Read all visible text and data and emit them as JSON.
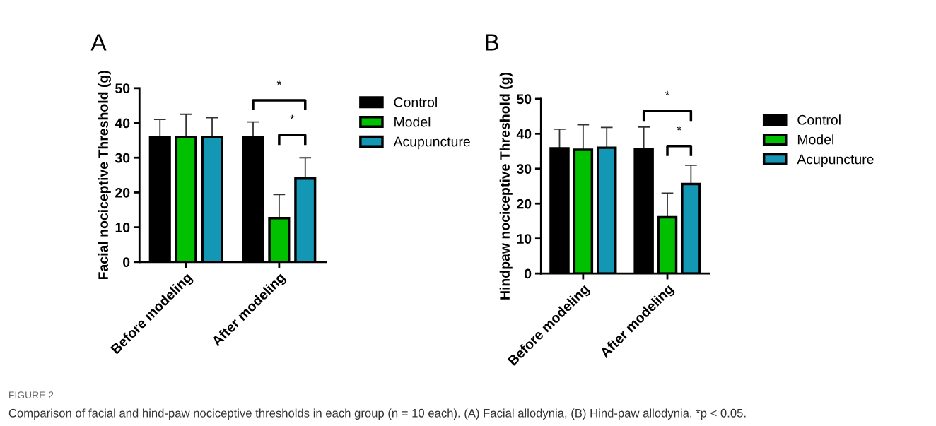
{
  "chart_data": [
    {
      "type": "bar",
      "title": "A",
      "ylabel": "Facial nociceptive Threshold (g)",
      "categories": [
        "Before modeling",
        "After modeling"
      ],
      "series": [
        {
          "name": "Control",
          "color": "#000000",
          "values": [
            36,
            36
          ],
          "errors": [
            5,
            4.3
          ]
        },
        {
          "name": "Model",
          "color": "#00c000",
          "values": [
            36,
            12.6
          ],
          "errors": [
            6.5,
            6.8
          ]
        },
        {
          "name": "Acupuncture",
          "color": "#1497b4",
          "values": [
            36,
            24
          ],
          "errors": [
            5.5,
            6
          ]
        }
      ],
      "ylim": [
        0,
        50
      ],
      "yticks": [
        0,
        10,
        20,
        30,
        40,
        50
      ],
      "legend": "right",
      "grid": false,
      "annotations": [
        "*",
        "*",
        "FIGURE 2",
        "Comparison of facial and hind-paw nociceptive thresholds in each group (n = 10 each). (A) Facial allodynia, (B) Hind-paw allodynia. *p < 0.05."
      ]
    },
    {
      "type": "bar",
      "title": "B",
      "ylabel": "Hindpaw nociceptive Threshold (g)",
      "categories": [
        "Before modeling",
        "After modeling"
      ],
      "series": [
        {
          "name": "Control",
          "color": "#000000",
          "values": [
            35.8,
            35.5
          ],
          "errors": [
            5.5,
            6.4
          ]
        },
        {
          "name": "Model",
          "color": "#00c000",
          "values": [
            35.4,
            16.1
          ],
          "errors": [
            7.2,
            6.9
          ]
        },
        {
          "name": "Acupuncture",
          "color": "#1497b4",
          "values": [
            36,
            25.6
          ],
          "errors": [
            5.8,
            5.4
          ]
        }
      ],
      "ylim": [
        0,
        50
      ],
      "yticks": [
        0,
        10,
        20,
        30,
        40,
        50
      ],
      "legend": "right",
      "grid": false,
      "annotations": [
        "*",
        "*"
      ]
    }
  ]
}
